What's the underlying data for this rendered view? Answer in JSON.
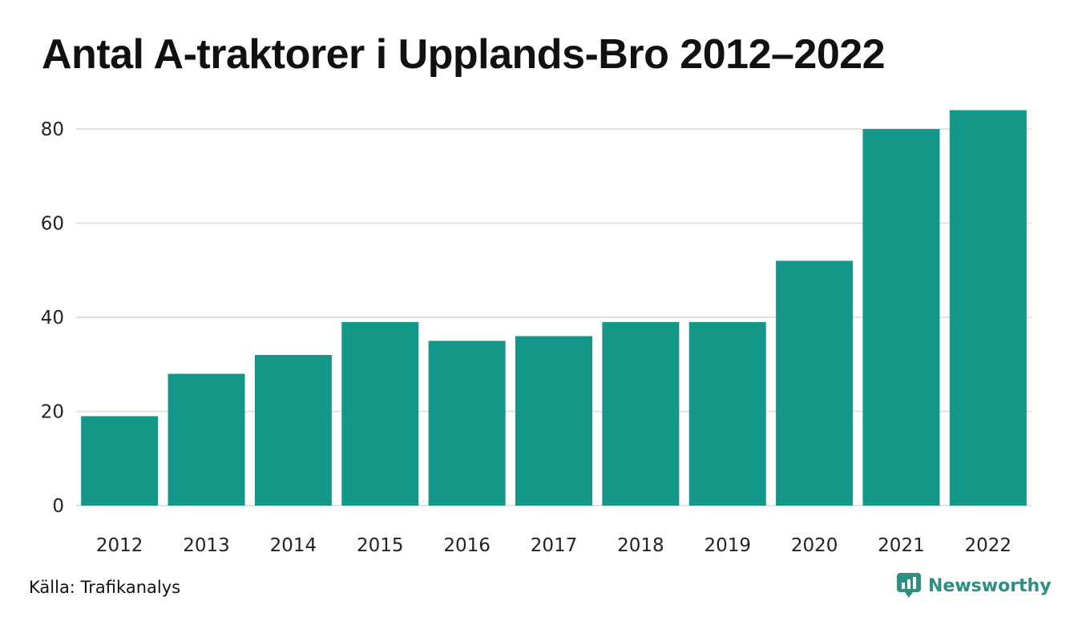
{
  "title": "Antal A-traktorer i Upplands-Bro 2012–2022",
  "source": "Källa: Trafikanalys",
  "brand": {
    "name": "Newsworthy",
    "icon": "newsworthy-logo-icon",
    "color": "#2b8f82"
  },
  "colors": {
    "bar": "#149688",
    "grid": "#e3e3e3",
    "text": "#222222"
  },
  "chart_data": {
    "type": "bar",
    "title": "Antal A-traktorer i Upplands-Bro 2012–2022",
    "xlabel": "",
    "ylabel": "",
    "categories": [
      "2012",
      "2013",
      "2014",
      "2015",
      "2016",
      "2017",
      "2018",
      "2019",
      "2020",
      "2021",
      "2022"
    ],
    "values": [
      19,
      28,
      32,
      39,
      35,
      36,
      39,
      39,
      52,
      80,
      84
    ],
    "ylim": [
      0,
      86
    ],
    "yticks": [
      0,
      20,
      40,
      60,
      80
    ],
    "grid": true,
    "legend": "none"
  }
}
